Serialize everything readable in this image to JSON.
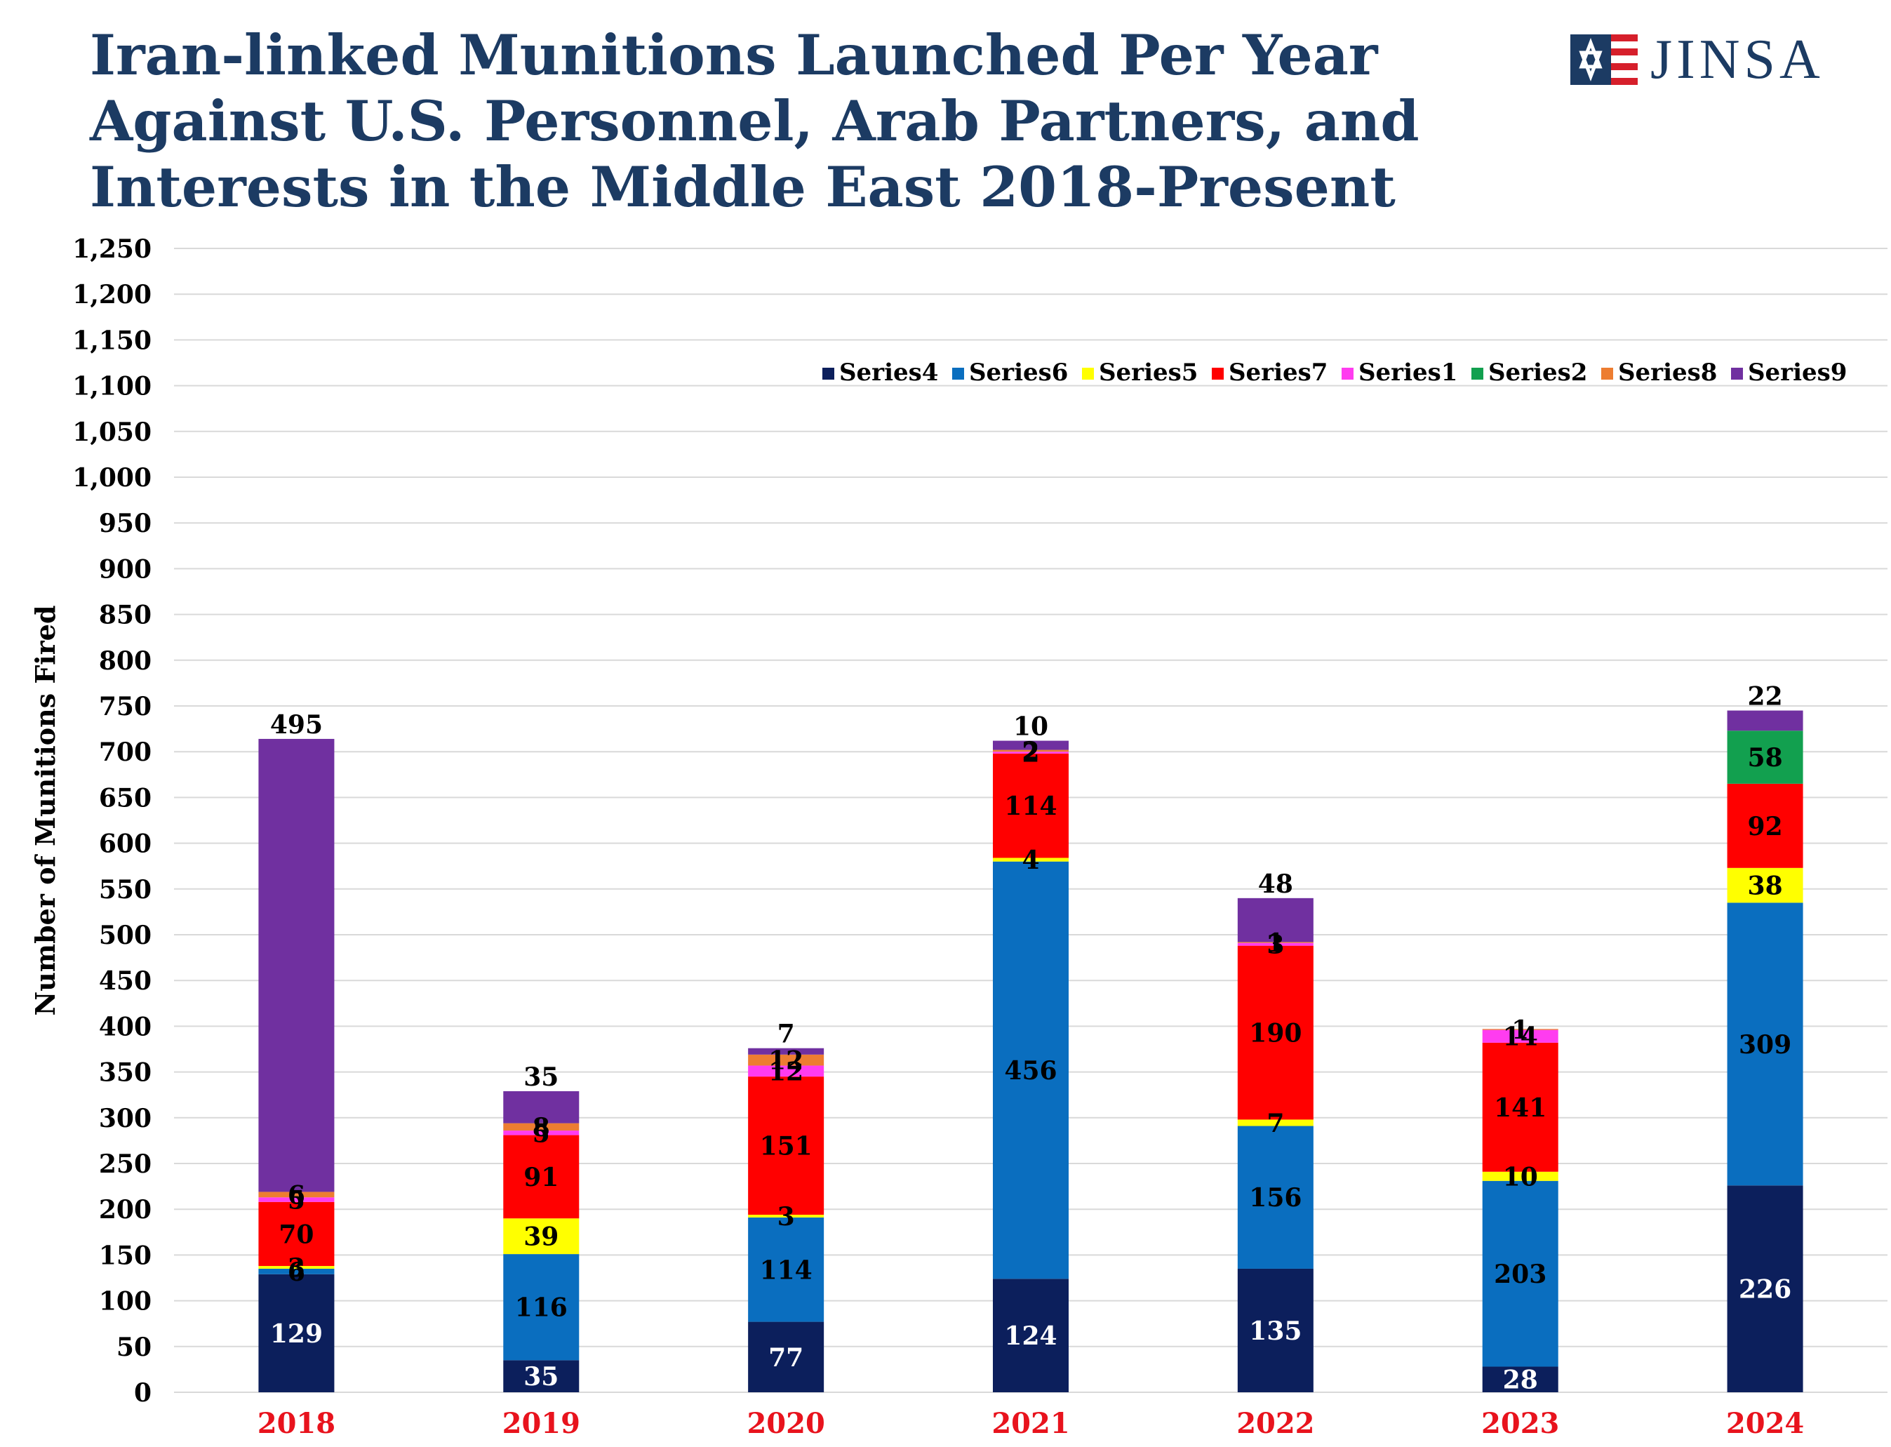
{
  "header": {
    "title_lines": [
      "Iran-linked Munitions Launched Per Year",
      "Against U.S. Personnel, Arab Partners, and",
      "Interests in the Middle East 2018-Present"
    ],
    "logo_text": "JINSA"
  },
  "colors": {
    "title": "#1c3b63",
    "year_labels": "#e8131d",
    "grid": "#d9d9d9"
  },
  "chart_data": {
    "type": "bar",
    "stacked": true,
    "categories": [
      "2018",
      "2019",
      "2020",
      "2021",
      "2022",
      "2023",
      "2024"
    ],
    "ylabel": "Number of Munitions Fired",
    "xlabel": "",
    "ylim": [
      0,
      1250
    ],
    "ytick_step": 50,
    "grid": true,
    "legend_position": "top-right",
    "series": [
      {
        "name": "Series4",
        "color": "#0c1f5c",
        "values": [
          129,
          35,
          77,
          124,
          135,
          28,
          226
        ]
      },
      {
        "name": "Series6",
        "color": "#0a6ebf",
        "values": [
          6,
          116,
          114,
          456,
          156,
          203,
          309
        ]
      },
      {
        "name": "Series5",
        "color": "#ffff00",
        "values": [
          3,
          39,
          3,
          4,
          7,
          10,
          38
        ]
      },
      {
        "name": "Series7",
        "color": "#ff0000",
        "values": [
          70,
          91,
          151,
          114,
          190,
          141,
          92
        ]
      },
      {
        "name": "Series1",
        "color": "#ff3cf0",
        "values": [
          5,
          5,
          12,
          2,
          3,
          14,
          0
        ]
      },
      {
        "name": "Series2",
        "color": "#12a04f",
        "values": [
          0,
          0,
          0,
          0,
          0,
          0,
          58
        ]
      },
      {
        "name": "Series8",
        "color": "#ed7d31",
        "values": [
          6,
          8,
          12,
          2,
          1,
          1,
          0
        ]
      },
      {
        "name": "Series9",
        "color": "#7030a0",
        "values": [
          495,
          35,
          7,
          10,
          48,
          0,
          22
        ]
      }
    ],
    "tick_labels": [
      "0",
      "50",
      "100",
      "150",
      "200",
      "250",
      "300",
      "350",
      "400",
      "450",
      "500",
      "550",
      "600",
      "650",
      "700",
      "750",
      "800",
      "850",
      "900",
      "950",
      "1,000",
      "1,050",
      "1,100",
      "1,150",
      "1,200",
      "1,250"
    ]
  }
}
